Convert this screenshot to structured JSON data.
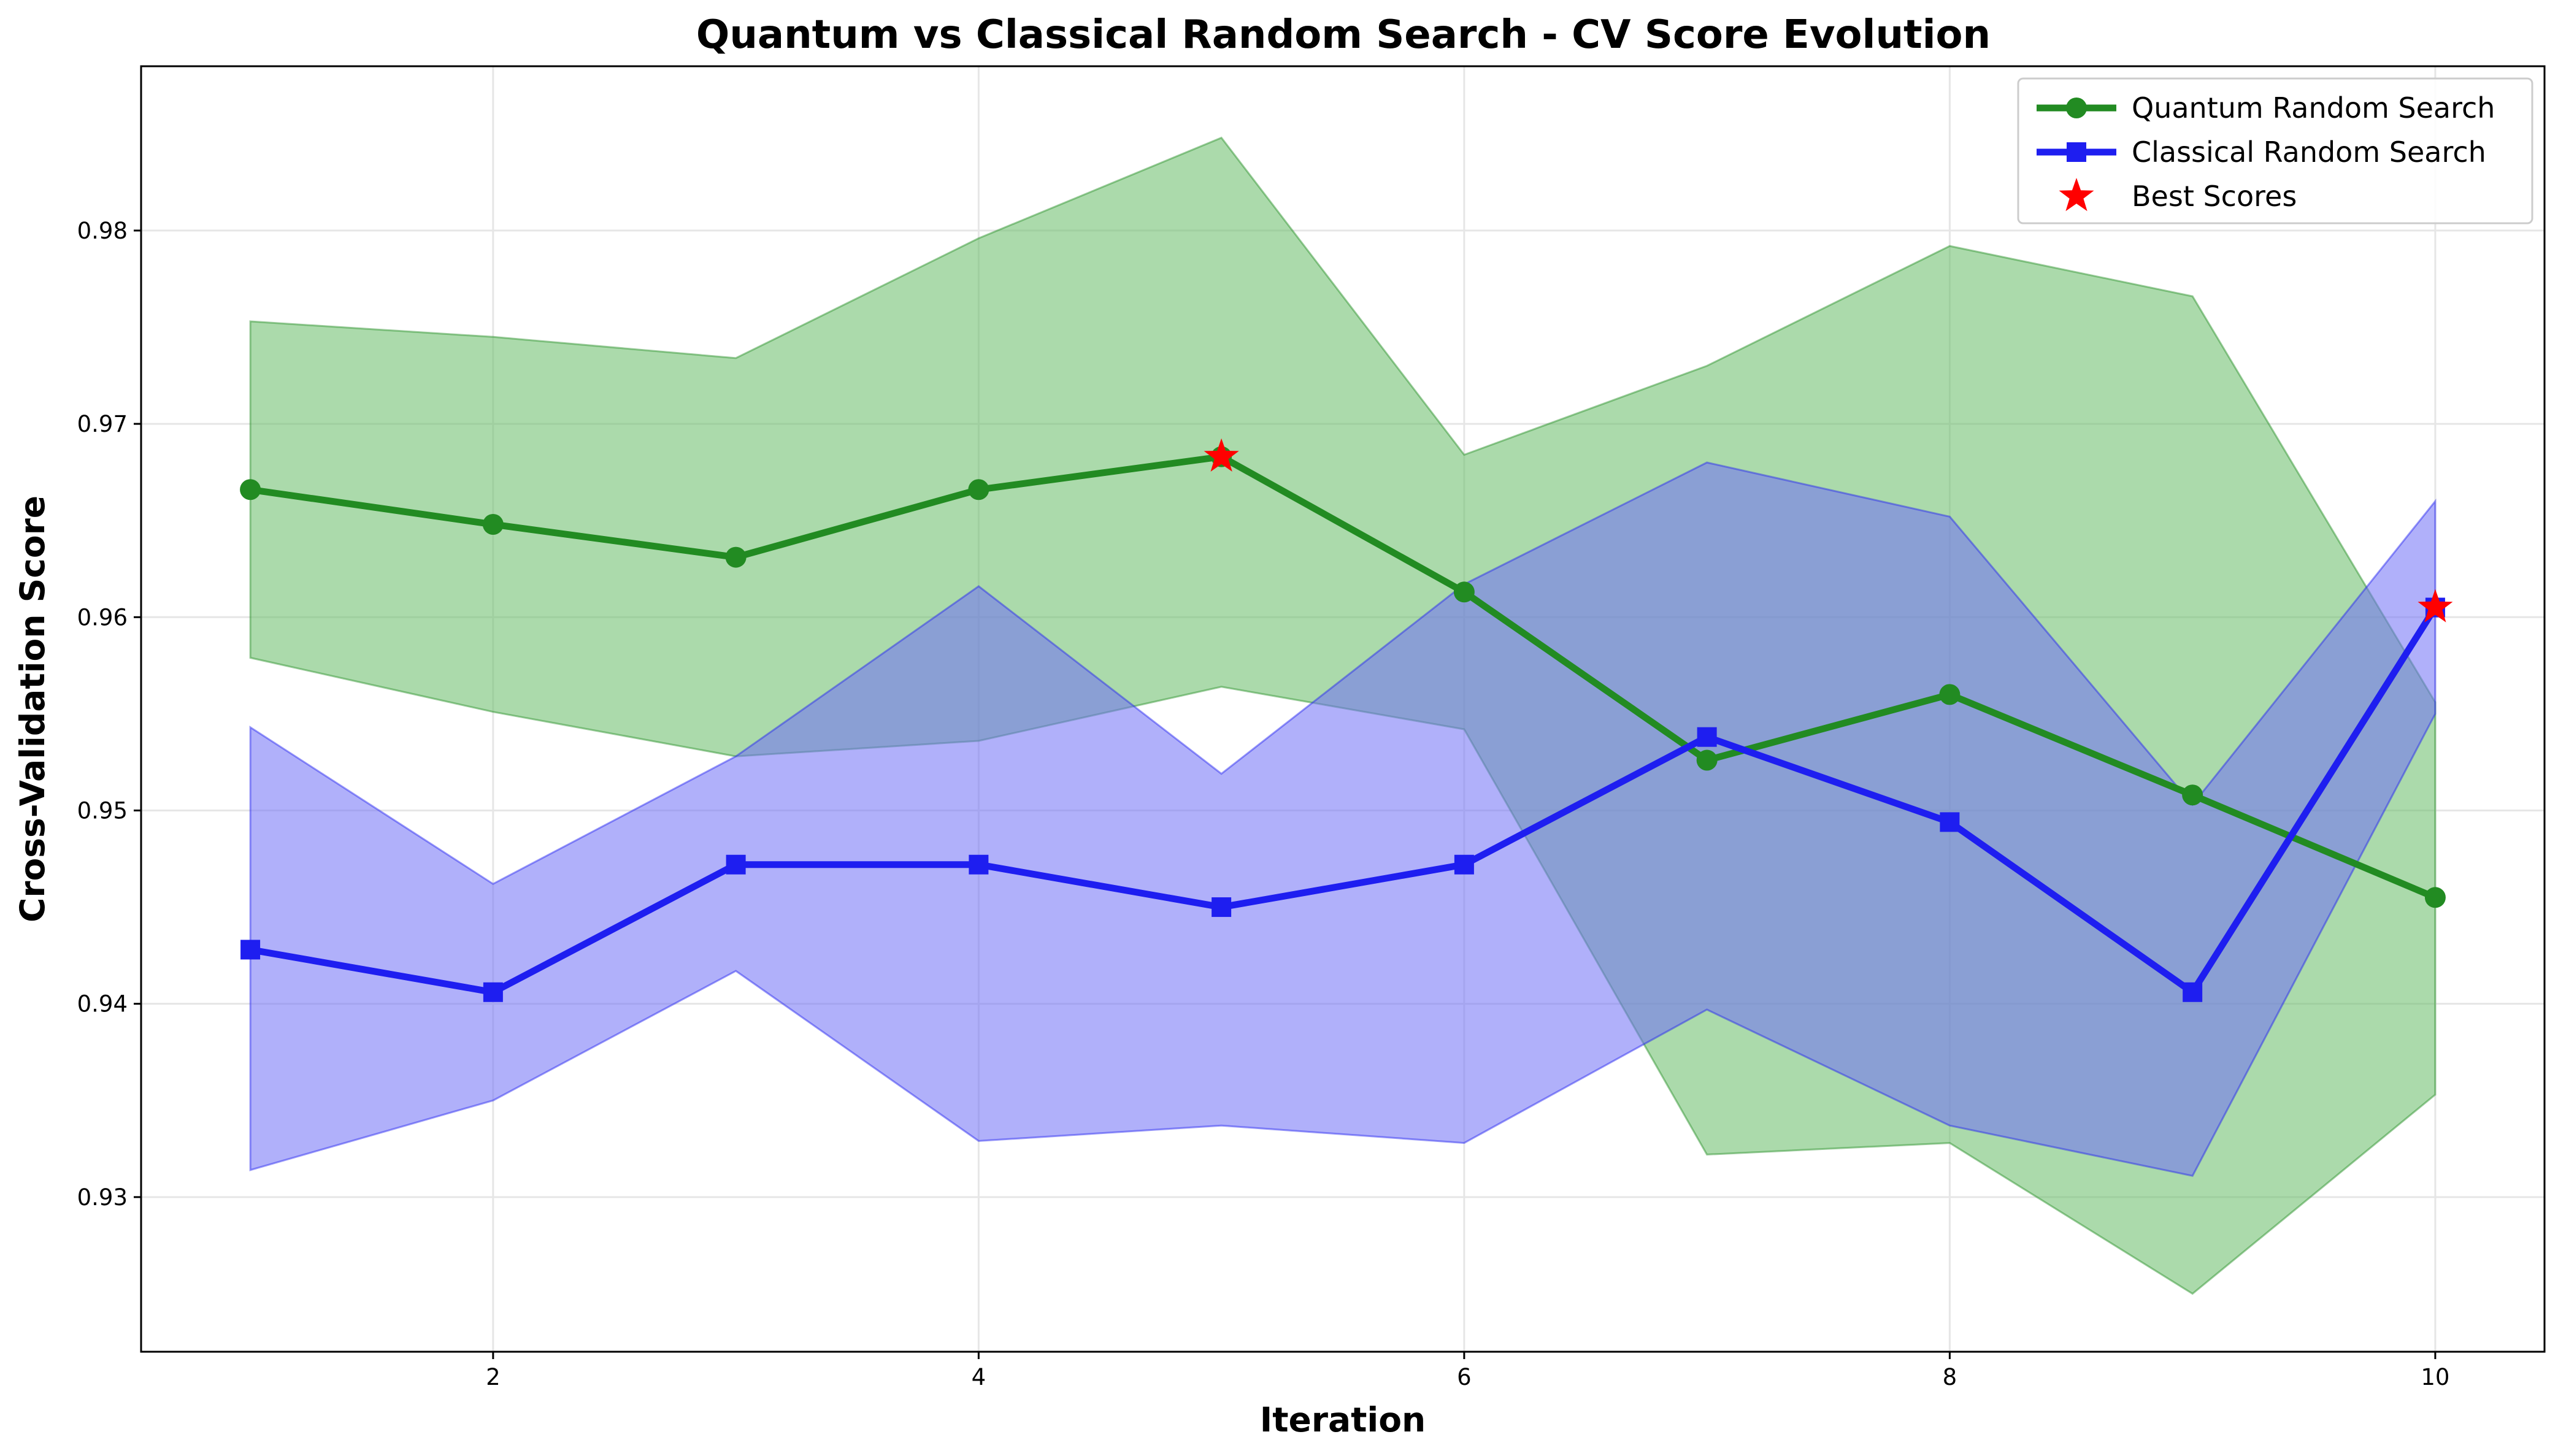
{
  "chart_data": {
    "type": "line",
    "title": "Quantum vs Classical Random Search - CV Score Evolution",
    "xlabel": "Iteration",
    "ylabel": "Cross-Validation Score",
    "xlim": [
      0.55,
      10.45
    ],
    "ylim": [
      0.922,
      0.9885
    ],
    "x_ticks": [
      2,
      4,
      6,
      8,
      10
    ],
    "y_ticks": [
      0.93,
      0.94,
      0.95,
      0.96,
      0.97,
      0.98
    ],
    "x_tick_labels": [
      "2",
      "4",
      "6",
      "8",
      "10"
    ],
    "y_tick_labels": [
      "0.93",
      "0.94",
      "0.95",
      "0.96",
      "0.97",
      "0.98"
    ],
    "grid": true,
    "legend_position": "top-right",
    "x": [
      1,
      2,
      3,
      4,
      5,
      6,
      7,
      8,
      9,
      10
    ],
    "series": [
      {
        "name": "Quantum Random Search",
        "marker": "circle",
        "color": "#228b22",
        "band_color": "#66bb66",
        "values": [
          0.9666,
          0.9648,
          0.9631,
          0.9666,
          0.9683,
          0.9613,
          0.9526,
          0.956,
          0.9508,
          0.9455
        ],
        "upper": [
          0.9753,
          0.9745,
          0.9734,
          0.9796,
          0.9848,
          0.9684,
          0.973,
          0.9792,
          0.9766,
          0.9556
        ],
        "lower": [
          0.9579,
          0.9551,
          0.9528,
          0.9536,
          0.9564,
          0.9542,
          0.9322,
          0.9328,
          0.925,
          0.9353
        ]
      },
      {
        "name": "Classical Random Search",
        "marker": "square",
        "color": "#1e1ef0",
        "band_color": "#6f6ff5",
        "values": [
          0.9428,
          0.9406,
          0.9472,
          0.9472,
          0.945,
          0.9472,
          0.9538,
          0.9494,
          0.9406,
          0.9605
        ],
        "upper": [
          0.9543,
          0.9462,
          0.9528,
          0.9616,
          0.9519,
          0.9617,
          0.968,
          0.9652,
          0.9503,
          0.966
        ],
        "lower": [
          0.9314,
          0.935,
          0.9417,
          0.9329,
          0.9337,
          0.9328,
          0.9397,
          0.9337,
          0.9311,
          0.955
        ]
      }
    ],
    "best_scores": {
      "name": "Best Scores",
      "color": "#ff0000",
      "points": [
        {
          "x": 5,
          "y": 0.9683
        },
        {
          "x": 10,
          "y": 0.9605
        }
      ]
    }
  }
}
